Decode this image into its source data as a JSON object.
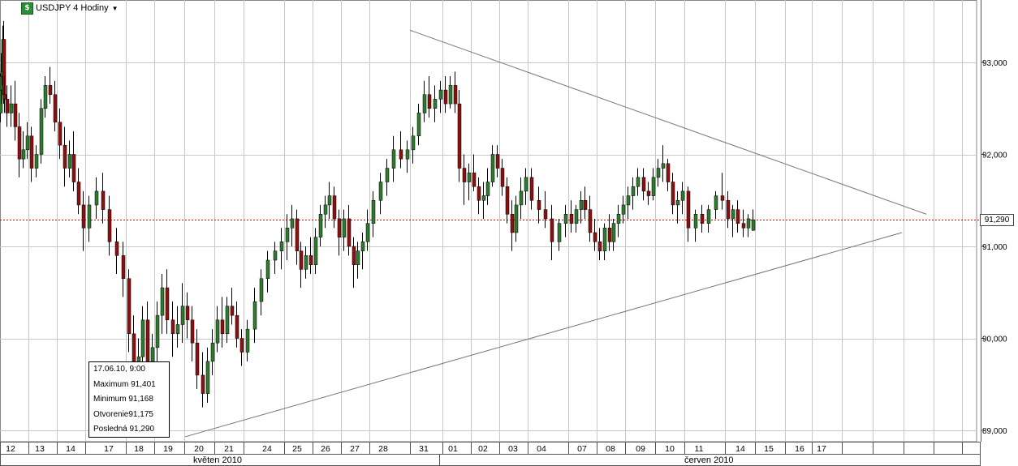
{
  "window": {
    "instrument_label": "USDJPY 4 Hodiny",
    "icon": "chart-icon"
  },
  "info_box": {
    "datetime": "17.06.10, 9:00",
    "maximum": "Maximum 91,401",
    "minimum": "Minimum  91,168",
    "open": "Otvorenie91,175",
    "last": "Posledná 91,290"
  },
  "current_price_label": "91,290",
  "colors": {
    "bull": "#2f7a2f",
    "bear": "#8b1010",
    "wick": "#000000",
    "grid": "#c8c8c8",
    "trendline": "#777777",
    "price_line": "#cc0000"
  },
  "chart_data": {
    "type": "candlestick",
    "timeframe": "4 hours",
    "y_axis": {
      "ticks": [
        89.0,
        90.0,
        91.0,
        92.0,
        93.0
      ],
      "tick_labels": [
        "89,000",
        "90,000",
        "91,000",
        "92,000",
        "93,000"
      ],
      "range": [
        88.9,
        93.85
      ],
      "side": "right"
    },
    "x_axis": {
      "day_labels": [
        "12",
        "13",
        "14",
        "17",
        "18",
        "19",
        "20",
        "21",
        "24",
        "25",
        "26",
        "27",
        "28",
        "31",
        "01",
        "02",
        "03",
        "04",
        "07",
        "08",
        "09",
        "10",
        "11",
        "14",
        "15",
        "16",
        "17"
      ],
      "month_labels": [
        "květen 2010",
        "červen 2010"
      ]
    },
    "current_price": 91.29,
    "last_candle": {
      "datetime": "17.06.10, 9:00",
      "open": 91.175,
      "high": 91.401,
      "low": 91.168,
      "close": 91.29
    },
    "trendlines": [
      {
        "role": "upper-resistance",
        "from": {
          "day": "31.05",
          "price": 93.35
        },
        "to": {
          "day": "after 17.06",
          "price": 91.35
        }
      },
      {
        "role": "lower-support",
        "from": {
          "day": "20.05",
          "price": 88.93
        },
        "to": {
          "day": "after 17.06",
          "price": 91.15
        }
      }
    ],
    "grid": true,
    "candles_per_day": 6,
    "candles": [
      [
        92.45,
        92.88,
        92.35,
        92.7
      ],
      [
        92.7,
        93.1,
        92.55,
        92.85
      ],
      [
        92.85,
        93.15,
        92.75,
        92.9
      ],
      [
        92.9,
        93.4,
        92.75,
        93.25
      ],
      [
        93.25,
        93.45,
        92.55,
        92.65
      ],
      [
        92.65,
        92.85,
        92.45,
        92.6
      ],
      [
        92.6,
        92.75,
        92.3,
        92.45
      ],
      [
        92.45,
        92.75,
        92.3,
        92.55
      ],
      [
        92.55,
        92.8,
        92.15,
        92.3
      ],
      [
        92.3,
        92.45,
        91.75,
        91.95
      ],
      [
        91.95,
        92.25,
        91.85,
        92.05
      ],
      [
        92.05,
        92.35,
        91.95,
        92.2
      ],
      [
        92.2,
        92.3,
        91.7,
        91.85
      ],
      [
        91.85,
        92.1,
        91.75,
        92.0
      ],
      [
        92.0,
        92.6,
        91.9,
        92.5
      ],
      [
        92.5,
        92.85,
        92.4,
        92.75
      ],
      [
        92.75,
        92.95,
        92.55,
        92.65
      ],
      [
        92.65,
        92.8,
        92.25,
        92.35
      ],
      [
        92.35,
        92.5,
        91.95,
        92.1
      ],
      [
        92.1,
        92.3,
        91.65,
        91.85
      ],
      [
        91.85,
        92.15,
        91.75,
        92.0
      ],
      [
        92.0,
        92.25,
        91.6,
        91.7
      ],
      [
        91.7,
        91.85,
        91.35,
        91.45
      ],
      [
        91.45,
        91.6,
        90.95,
        91.2
      ],
      [
        91.2,
        91.55,
        91.05,
        91.45
      ],
      [
        91.45,
        91.75,
        91.3,
        91.6
      ],
      [
        91.6,
        91.8,
        91.25,
        91.4
      ],
      [
        91.4,
        91.55,
        90.9,
        91.05
      ],
      [
        91.05,
        91.2,
        90.7,
        90.9
      ],
      [
        90.9,
        91.05,
        90.45,
        90.65
      ],
      [
        90.65,
        90.75,
        89.85,
        90.05
      ],
      [
        90.05,
        90.25,
        89.05,
        89.45
      ],
      [
        89.45,
        90.0,
        89.2,
        89.8
      ],
      [
        89.8,
        90.35,
        89.6,
        90.2
      ],
      [
        90.2,
        90.4,
        89.55,
        89.7
      ],
      [
        89.7,
        90.05,
        89.25,
        89.9
      ],
      [
        89.9,
        90.4,
        89.75,
        90.25
      ],
      [
        90.25,
        90.7,
        90.05,
        90.55
      ],
      [
        90.55,
        90.75,
        90.05,
        90.2
      ],
      [
        90.2,
        90.4,
        89.8,
        90.05
      ],
      [
        90.05,
        90.35,
        89.9,
        90.15
      ],
      [
        90.15,
        90.6,
        89.95,
        90.35
      ],
      [
        90.35,
        90.5,
        90.0,
        90.2
      ],
      [
        90.2,
        90.35,
        89.75,
        89.95
      ],
      [
        89.95,
        90.1,
        89.45,
        89.6
      ],
      [
        89.6,
        89.85,
        89.25,
        89.4
      ],
      [
        89.4,
        89.9,
        89.3,
        89.75
      ],
      [
        89.75,
        90.1,
        89.6,
        89.95
      ],
      [
        89.95,
        90.35,
        89.85,
        90.2
      ],
      [
        90.2,
        90.45,
        89.9,
        90.05
      ],
      [
        90.05,
        90.45,
        89.95,
        90.35
      ],
      [
        90.35,
        90.55,
        90.15,
        90.25
      ],
      [
        90.25,
        90.4,
        89.9,
        90.0
      ],
      [
        90.0,
        90.1,
        89.7,
        89.85
      ],
      [
        89.85,
        90.2,
        89.75,
        90.1
      ],
      [
        90.1,
        90.55,
        89.95,
        90.4
      ],
      [
        90.4,
        90.75,
        90.25,
        90.65
      ],
      [
        90.65,
        90.95,
        90.5,
        90.85
      ],
      [
        90.85,
        91.05,
        90.7,
        90.95
      ],
      [
        90.95,
        91.2,
        90.75,
        91.05
      ],
      [
        91.05,
        91.35,
        90.85,
        91.2
      ],
      [
        91.2,
        91.45,
        91.0,
        91.3
      ],
      [
        91.3,
        91.4,
        90.8,
        90.95
      ],
      [
        90.95,
        91.05,
        90.55,
        90.75
      ],
      [
        90.75,
        91.0,
        90.65,
        90.9
      ],
      [
        90.9,
        91.1,
        90.7,
        90.8
      ],
      [
        90.8,
        91.2,
        90.7,
        91.1
      ],
      [
        91.1,
        91.45,
        91.0,
        91.35
      ],
      [
        91.35,
        91.55,
        91.2,
        91.45
      ],
      [
        91.45,
        91.7,
        91.3,
        91.55
      ],
      [
        91.55,
        91.65,
        91.2,
        91.3
      ],
      [
        91.3,
        91.4,
        90.9,
        91.1
      ],
      [
        91.1,
        91.4,
        90.95,
        91.3
      ],
      [
        91.3,
        91.45,
        90.9,
        91.0
      ],
      [
        91.0,
        91.1,
        90.55,
        90.8
      ],
      [
        90.8,
        91.05,
        90.65,
        90.95
      ],
      [
        90.95,
        91.15,
        90.75,
        91.05
      ],
      [
        91.05,
        91.4,
        90.95,
        91.25
      ],
      [
        91.25,
        91.6,
        91.1,
        91.5
      ],
      [
        91.5,
        91.8,
        91.35,
        91.7
      ],
      [
        91.7,
        91.95,
        91.55,
        91.85
      ],
      [
        91.85,
        92.2,
        91.7,
        92.05
      ],
      [
        92.05,
        92.25,
        91.85,
        91.95
      ],
      [
        91.95,
        92.15,
        91.8,
        92.05
      ],
      [
        92.05,
        92.3,
        91.9,
        92.2
      ],
      [
        92.2,
        92.55,
        92.1,
        92.45
      ],
      [
        92.45,
        92.8,
        92.35,
        92.65
      ],
      [
        92.65,
        92.85,
        92.4,
        92.5
      ],
      [
        92.5,
        92.75,
        92.35,
        92.6
      ],
      [
        92.6,
        92.8,
        92.45,
        92.7
      ],
      [
        92.7,
        92.85,
        92.45,
        92.55
      ],
      [
        92.55,
        92.85,
        92.5,
        92.75
      ],
      [
        92.75,
        92.9,
        92.45,
        92.55
      ],
      [
        92.55,
        92.7,
        91.7,
        91.85
      ],
      [
        91.85,
        92.0,
        91.45,
        91.7
      ],
      [
        91.7,
        91.9,
        91.5,
        91.8
      ],
      [
        91.8,
        92.0,
        91.6,
        91.65
      ],
      [
        91.65,
        91.75,
        91.35,
        91.5
      ],
      [
        91.5,
        91.7,
        91.3,
        91.55
      ],
      [
        91.55,
        91.85,
        91.45,
        91.7
      ],
      [
        91.7,
        92.1,
        91.65,
        92.0
      ],
      [
        92.0,
        92.1,
        91.75,
        91.85
      ],
      [
        91.85,
        91.95,
        91.55,
        91.65
      ],
      [
        91.65,
        91.75,
        91.25,
        91.35
      ],
      [
        91.35,
        91.5,
        90.95,
        91.15
      ],
      [
        91.15,
        91.55,
        91.05,
        91.45
      ],
      [
        91.45,
        91.75,
        91.3,
        91.6
      ],
      [
        91.6,
        91.85,
        91.45,
        91.75
      ],
      [
        91.75,
        91.85,
        91.4,
        91.5
      ],
      [
        91.5,
        91.65,
        91.25,
        91.4
      ],
      [
        91.4,
        91.6,
        91.2,
        91.3
      ],
      [
        91.3,
        91.45,
        90.85,
        91.05
      ],
      [
        91.05,
        91.3,
        90.95,
        91.25
      ],
      [
        91.25,
        91.45,
        91.1,
        91.35
      ],
      [
        91.35,
        91.5,
        91.15,
        91.25
      ],
      [
        91.25,
        91.45,
        91.15,
        91.4
      ],
      [
        91.4,
        91.6,
        91.25,
        91.5
      ],
      [
        91.5,
        91.65,
        91.3,
        91.4
      ],
      [
        91.4,
        91.55,
        91.05,
        91.15
      ],
      [
        91.15,
        91.3,
        90.95,
        91.05
      ],
      [
        91.05,
        91.2,
        90.85,
        90.95
      ],
      [
        90.95,
        91.25,
        90.85,
        91.2
      ],
      [
        91.2,
        91.35,
        90.95,
        91.05
      ],
      [
        91.05,
        91.3,
        90.95,
        91.25
      ],
      [
        91.25,
        91.45,
        91.1,
        91.35
      ],
      [
        91.35,
        91.55,
        91.25,
        91.45
      ],
      [
        91.45,
        91.65,
        91.3,
        91.55
      ],
      [
        91.55,
        91.75,
        91.4,
        91.65
      ],
      [
        91.65,
        91.85,
        91.55,
        91.75
      ],
      [
        91.75,
        91.85,
        91.5,
        91.6
      ],
      [
        91.6,
        91.7,
        91.45,
        91.55
      ],
      [
        91.55,
        91.85,
        91.5,
        91.75
      ],
      [
        91.75,
        91.95,
        91.65,
        91.85
      ],
      [
        91.85,
        92.1,
        91.7,
        91.9
      ],
      [
        91.9,
        91.95,
        91.6,
        91.7
      ],
      [
        91.7,
        91.8,
        91.35,
        91.45
      ],
      [
        91.45,
        91.6,
        91.25,
        91.5
      ],
      [
        91.5,
        91.7,
        91.35,
        91.6
      ],
      [
        91.6,
        91.65,
        91.05,
        91.2
      ],
      [
        91.2,
        91.4,
        91.05,
        91.35
      ],
      [
        91.35,
        91.45,
        91.15,
        91.25
      ],
      [
        91.25,
        91.45,
        91.15,
        91.4
      ],
      [
        91.4,
        91.6,
        91.3,
        91.55
      ],
      [
        91.55,
        91.8,
        91.4,
        91.5
      ],
      [
        91.5,
        91.6,
        91.2,
        91.3
      ],
      [
        91.3,
        91.45,
        91.1,
        91.4
      ],
      [
        91.4,
        91.5,
        91.15,
        91.25
      ],
      [
        91.25,
        91.4,
        91.1,
        91.2
      ],
      [
        91.2,
        91.35,
        91.1,
        91.3
      ],
      [
        91.175,
        91.401,
        91.168,
        91.29
      ]
    ]
  }
}
